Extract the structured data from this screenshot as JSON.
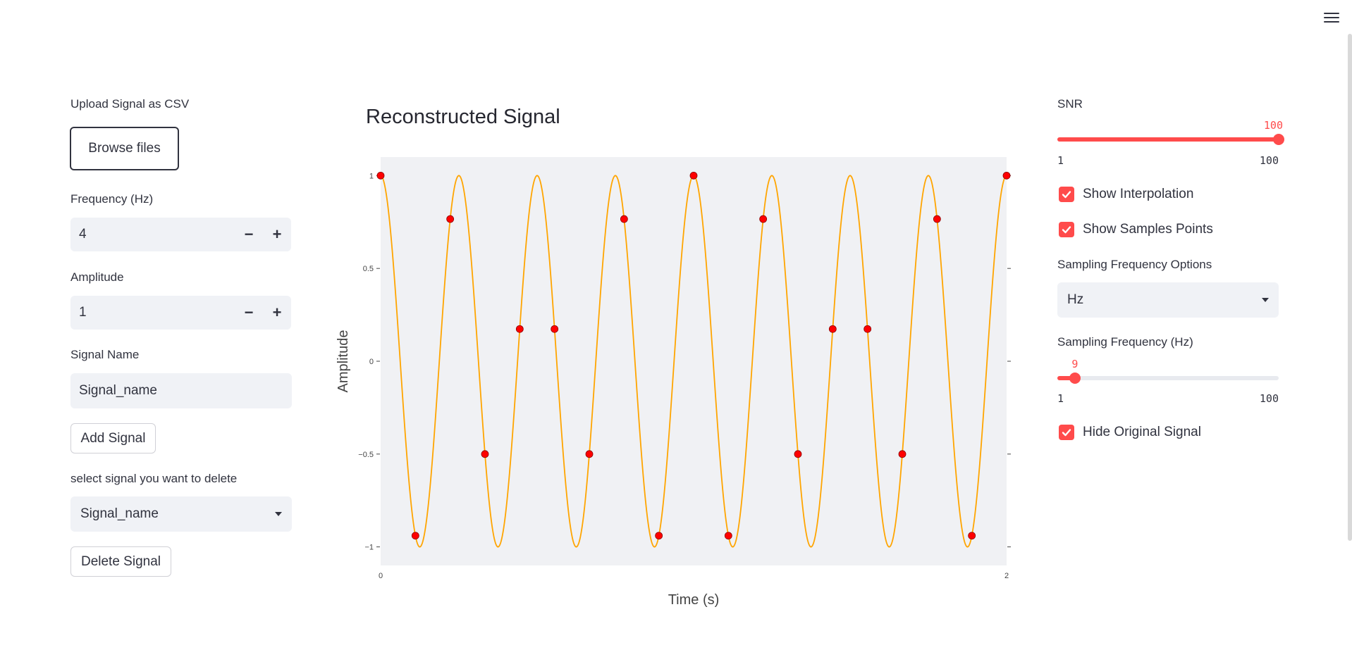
{
  "left_panel": {
    "upload_label": "Upload Signal as CSV",
    "browse_button": "Browse files",
    "frequency_label": "Frequency (Hz)",
    "frequency_value": "4",
    "amplitude_label": "Amplitude",
    "amplitude_value": "1",
    "minus_symbol": "−",
    "plus_symbol": "+",
    "signal_name_label": "Signal Name",
    "signal_name_value": "Signal_name",
    "add_signal_button": "Add Signal",
    "delete_select_label": "select signal you want to delete",
    "delete_select_value": "Signal_name",
    "delete_signal_button": "Delete Signal"
  },
  "main": {
    "title": "Reconstructed Signal"
  },
  "right_panel": {
    "snr_label": "SNR",
    "snr_value": 100,
    "snr_value_text": "100",
    "snr_min": "1",
    "snr_max": "100",
    "show_interpolation_label": "Show Interpolation",
    "show_interpolation_checked": true,
    "show_samples_label": "Show Samples Points",
    "show_samples_checked": true,
    "sampling_options_label": "Sampling Frequency Options",
    "sampling_options_value": "Hz",
    "sampling_freq_label": "Sampling Frequency (Hz)",
    "sampling_freq_value": 9,
    "sampling_freq_value_text": "9",
    "sampling_min": "1",
    "sampling_max": "100",
    "hide_original_label": "Hide Original Signal",
    "hide_original_checked": true
  },
  "colors": {
    "accent": "#ff4b4b",
    "interpolation_line": "#ffa500",
    "sample_marker": "#ff0000",
    "plot_bg": "#f0f1f4"
  },
  "icons": {
    "menu": "hamburger-menu-icon",
    "checkbox": "checkmark-icon",
    "dropdown": "chevron-down-icon"
  },
  "chart_data": {
    "type": "line",
    "title": "Reconstructed Signal",
    "xlabel": "Time (s)",
    "ylabel": "Amplitude",
    "xlim": [
      0,
      2
    ],
    "ylim": [
      -1.1,
      1.1
    ],
    "x_ticks": [
      0,
      2
    ],
    "x_tick_labels": [
      "0",
      "2"
    ],
    "y_ticks": [
      1,
      0.5,
      0,
      -0.5,
      -1
    ],
    "y_tick_labels": [
      "1",
      "0.5",
      "0",
      "−0.5",
      "−1"
    ],
    "grid": false,
    "series": [
      {
        "kind": "samples",
        "x": [
          0,
          0.1111,
          0.2222,
          0.3333,
          0.4444,
          0.5556,
          0.6667,
          0.7778,
          0.8889,
          1.0,
          1.1111,
          1.2222,
          1.3333,
          1.4444,
          1.5556,
          1.6667,
          1.7778,
          1.8889,
          2.0
        ],
        "y": [
          1,
          -0.9397,
          0.766,
          -0.5,
          0.1736,
          0.1736,
          -0.5,
          0.766,
          -0.9397,
          1,
          -0.9397,
          0.766,
          -0.5,
          0.1736,
          0.1736,
          -0.5,
          0.766,
          -0.9397,
          1
        ]
      },
      {
        "kind": "interpolation",
        "function": "cos(2*pi*4*t)",
        "x_range": [
          0,
          2
        ]
      }
    ]
  }
}
